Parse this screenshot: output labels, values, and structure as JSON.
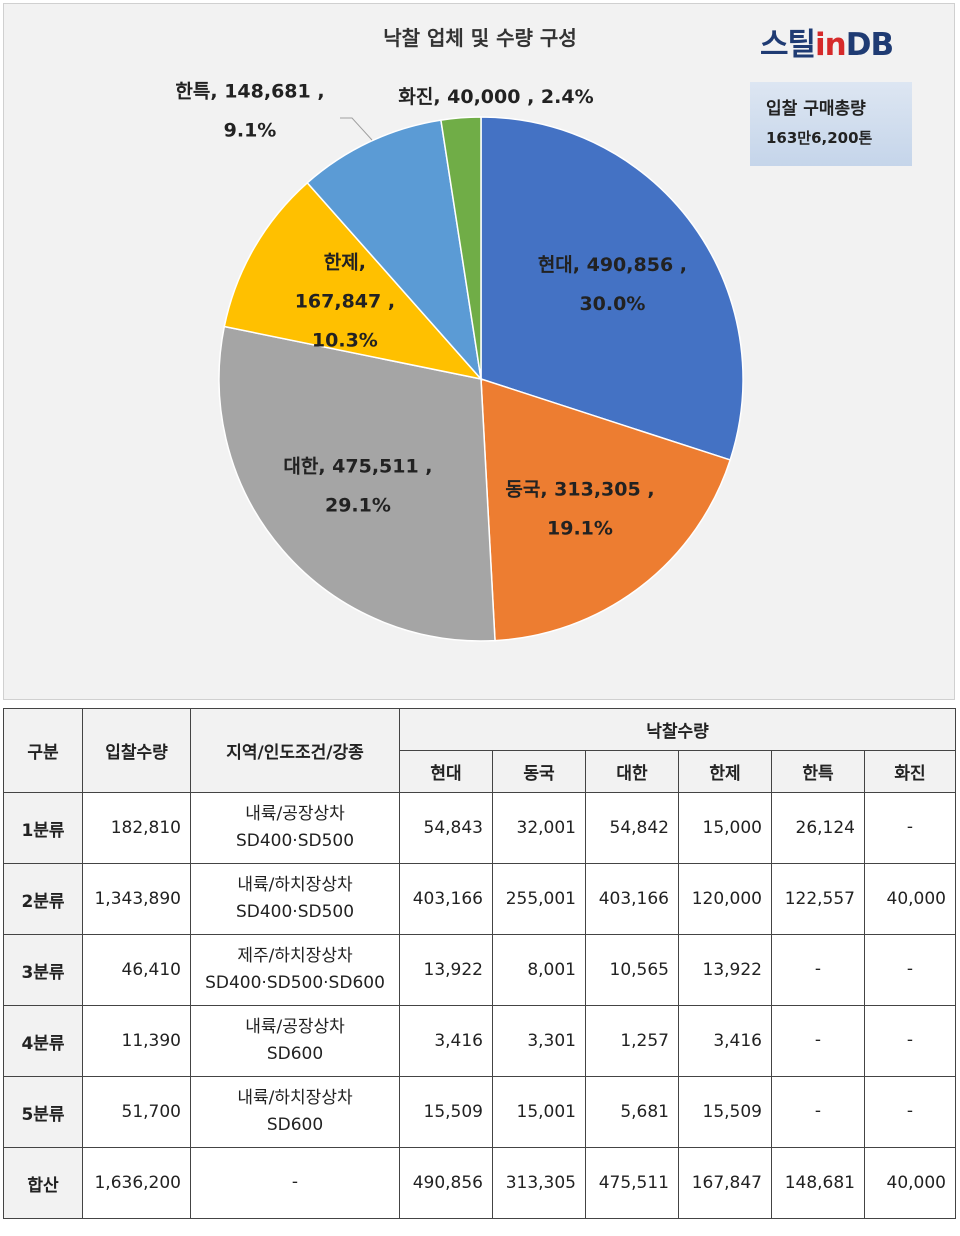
{
  "chart": {
    "title": "낙찰 업체 및 수량 구성",
    "logo": {
      "part1": "스틸",
      "part2": "in",
      "part3": "DB"
    },
    "info_box": {
      "line1": "입찰 구매총량",
      "line2": "163만6,200톤"
    }
  },
  "chart_data": {
    "type": "pie",
    "title": "낙찰 업체 및 수량 구성",
    "total_label": "입찰 구매총량 163만6,200톤",
    "start_angle": "12 o'clock, clockwise",
    "slices": [
      {
        "name": "현대",
        "value": 490856,
        "value_label": "490,856",
        "percent": "30.0%",
        "color": "#4472c4"
      },
      {
        "name": "동국",
        "value": 313305,
        "value_label": "313,305",
        "percent": "19.1%",
        "color": "#ed7d31"
      },
      {
        "name": "대한",
        "value": 475511,
        "value_label": "475,511",
        "percent": "29.1%",
        "color": "#a5a5a5"
      },
      {
        "name": "한제",
        "value": 167847,
        "value_label": "167,847",
        "percent": "10.3%",
        "color": "#ffc000"
      },
      {
        "name": "한특",
        "value": 148681,
        "value_label": "148,681",
        "percent": "9.1%",
        "color": "#5b9bd5"
      },
      {
        "name": "화진",
        "value": 40000,
        "value_label": "40,000",
        "percent": "2.4%",
        "color": "#70ad47"
      }
    ]
  },
  "table": {
    "headers": {
      "category": "구분",
      "bid_qty": "입찰수량",
      "condition": "지역/인도조건/강종",
      "award_group": "낙찰수량",
      "companies": [
        "현대",
        "동국",
        "대한",
        "한제",
        "한특",
        "화진"
      ]
    },
    "rows": [
      {
        "label": "1분류",
        "bid": "182,810",
        "cond1": "내륙/공장상차",
        "cond2": "SD400·SD500",
        "values": [
          "54,843",
          "32,001",
          "54,842",
          "15,000",
          "26,124",
          "-"
        ]
      },
      {
        "label": "2분류",
        "bid": "1,343,890",
        "cond1": "내륙/하치장상차",
        "cond2": "SD400·SD500",
        "values": [
          "403,166",
          "255,001",
          "403,166",
          "120,000",
          "122,557",
          "40,000"
        ]
      },
      {
        "label": "3분류",
        "bid": "46,410",
        "cond1": "제주/하치장상차",
        "cond2": "SD400·SD500·SD600",
        "values": [
          "13,922",
          "8,001",
          "10,565",
          "13,922",
          "-",
          "-"
        ]
      },
      {
        "label": "4분류",
        "bid": "11,390",
        "cond1": "내륙/공장상차",
        "cond2": "SD600",
        "values": [
          "3,416",
          "3,301",
          "1,257",
          "3,416",
          "-",
          "-"
        ]
      },
      {
        "label": "5분류",
        "bid": "51,700",
        "cond1": "내륙/하치장상차",
        "cond2": "SD600",
        "values": [
          "15,509",
          "15,001",
          "5,681",
          "15,509",
          "-",
          "-"
        ]
      }
    ],
    "total": {
      "label": "합산",
      "bid": "1,636,200",
      "cond": "-",
      "values": [
        "490,856",
        "313,305",
        "475,511",
        "167,847",
        "148,681",
        "40,000"
      ]
    }
  }
}
